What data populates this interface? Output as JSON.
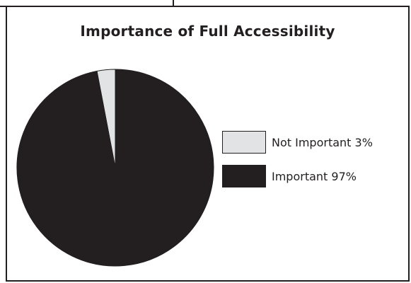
{
  "chart_data": {
    "type": "pie",
    "title": "Importance of Full Accessibility",
    "slices": [
      {
        "label": "Not Important 3%",
        "value": 3,
        "color": "#e2e3e4"
      },
      {
        "label": "Important 97%",
        "value": 97,
        "color": "#231f20"
      }
    ],
    "legend_position": "right",
    "stroke_color": "#231f20"
  }
}
